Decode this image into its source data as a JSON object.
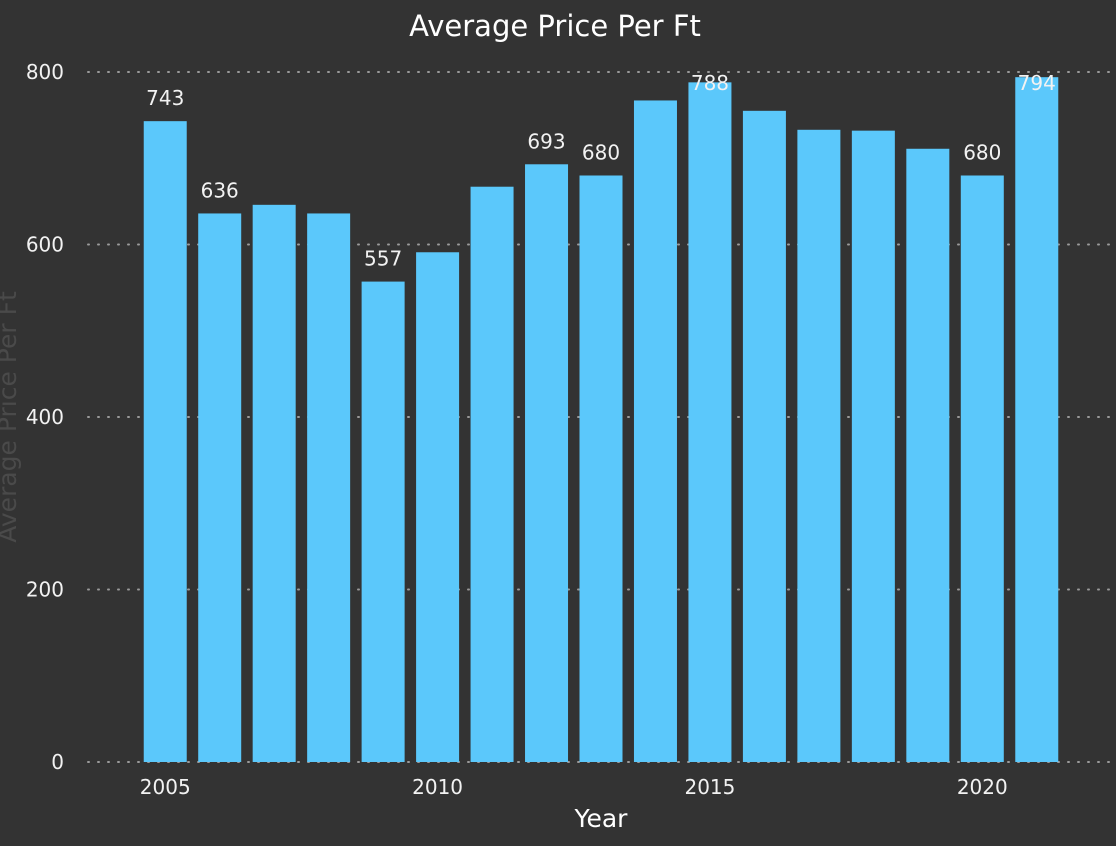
{
  "chart_data": {
    "type": "bar",
    "title": "Average Price Per Ft",
    "xlabel": "Year",
    "ylabel": "Average Price Per Ft",
    "categories": [
      "2005",
      "2006",
      "2007",
      "2008",
      "2009",
      "2010",
      "2011",
      "2012",
      "2013",
      "2014",
      "2015",
      "2016",
      "2017",
      "2018",
      "2019",
      "2020",
      "2021"
    ],
    "values": [
      743,
      636,
      646,
      636,
      557,
      591,
      667,
      693,
      680,
      767,
      788,
      755,
      733,
      732,
      711,
      680,
      794
    ],
    "data_labels": [
      "743",
      "636",
      "",
      "",
      "557",
      "",
      "",
      "693",
      "680",
      "",
      "788",
      "",
      "",
      "",
      "",
      "680",
      "794"
    ],
    "x_ticks": [
      "2005",
      "2010",
      "2015",
      "2020"
    ],
    "y_ticks": [
      0,
      200,
      400,
      600,
      800
    ],
    "ylim": [
      0,
      800
    ],
    "grid": true,
    "bar_color": "#5bc8fb",
    "background_color": "#333333"
  }
}
